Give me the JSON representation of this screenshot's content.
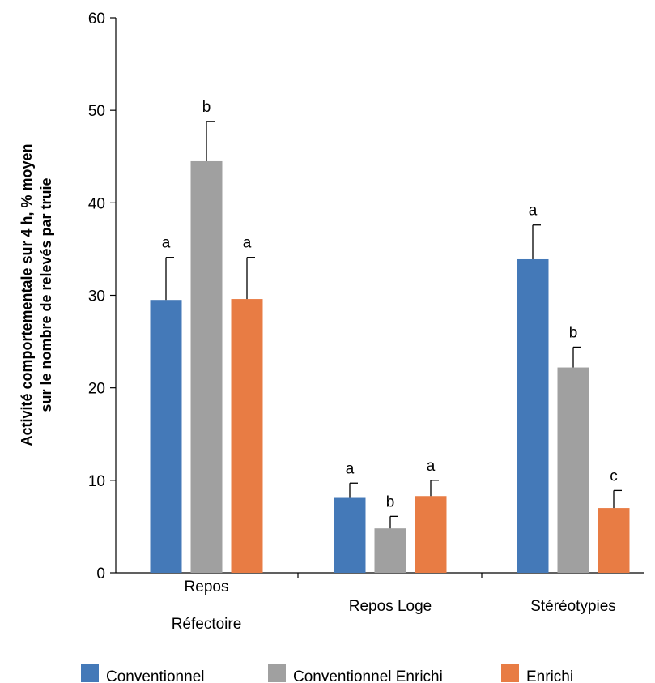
{
  "chart_data": {
    "type": "bar",
    "title": "",
    "xlabel": "",
    "ylabel_lines": [
      "Activité comportementale sur 4 h, % moyen",
      "sur le nombre de relevés par truie"
    ],
    "ylim": [
      0,
      60
    ],
    "yticks": [
      0,
      10,
      20,
      30,
      40,
      50,
      60
    ],
    "grid": false,
    "legend_position": "bottom",
    "categories": [
      {
        "lines": [
          "Repos",
          "Réfectoire"
        ]
      },
      {
        "lines": [
          "Repos Loge"
        ]
      },
      {
        "lines": [
          "Stéréotypies"
        ]
      }
    ],
    "series": [
      {
        "name": "Conventionnel",
        "color": "#4479b8",
        "values": [
          29.5,
          8.1,
          33.9
        ],
        "errors": [
          4.6,
          1.6,
          3.7
        ],
        "letters": [
          "a",
          "a",
          "a"
        ]
      },
      {
        "name": "Conventionnel Enrichi",
        "color": "#a0a0a0",
        "values": [
          44.5,
          4.8,
          22.2
        ],
        "errors": [
          4.3,
          1.3,
          2.2
        ],
        "letters": [
          "b",
          "b",
          "b"
        ]
      },
      {
        "name": "Enrichi",
        "color": "#e87c44",
        "values": [
          29.6,
          8.3,
          7.0
        ],
        "errors": [
          4.5,
          1.7,
          1.9
        ],
        "letters": [
          "a",
          "a",
          "c"
        ]
      }
    ]
  }
}
